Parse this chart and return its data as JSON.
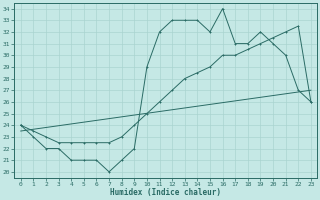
{
  "xlabel": "Humidex (Indice chaleur)",
  "ylabel": "",
  "background_color": "#c5e8e5",
  "line_color": "#2a6b65",
  "grid_color": "#aad4d0",
  "xlim": [
    -0.5,
    23.5
  ],
  "ylim": [
    19.5,
    34.5
  ],
  "xticks": [
    0,
    1,
    2,
    3,
    4,
    5,
    6,
    7,
    8,
    9,
    10,
    11,
    12,
    13,
    14,
    15,
    16,
    17,
    18,
    19,
    20,
    21,
    22,
    23
  ],
  "yticks": [
    20,
    21,
    22,
    23,
    24,
    25,
    26,
    27,
    28,
    29,
    30,
    31,
    32,
    33,
    34
  ],
  "main_x": [
    0,
    1,
    2,
    3,
    4,
    5,
    6,
    7,
    8,
    9,
    10,
    11,
    12,
    13,
    14,
    15,
    16,
    17,
    18,
    19,
    20,
    21,
    22,
    23
  ],
  "main_y": [
    24,
    23,
    22,
    22,
    21,
    21,
    21,
    20,
    21,
    22,
    29,
    32,
    33,
    33,
    33,
    32,
    34,
    31,
    31,
    32,
    31,
    30,
    27,
    26
  ],
  "line2_x": [
    0,
    1,
    2,
    3,
    4,
    5,
    6,
    7,
    8,
    9,
    10,
    11,
    12,
    13,
    14,
    15,
    16,
    17,
    18,
    19,
    20,
    21,
    22,
    23
  ],
  "line2_y": [
    24,
    23.5,
    23,
    22.5,
    22.5,
    22.5,
    22.5,
    22.5,
    23,
    24,
    25,
    26,
    27,
    28,
    28.5,
    29,
    30,
    30,
    30.5,
    31,
    31.5,
    32,
    32.5,
    26
  ],
  "line3_x": [
    0,
    23
  ],
  "line3_y": [
    23.5,
    27
  ]
}
